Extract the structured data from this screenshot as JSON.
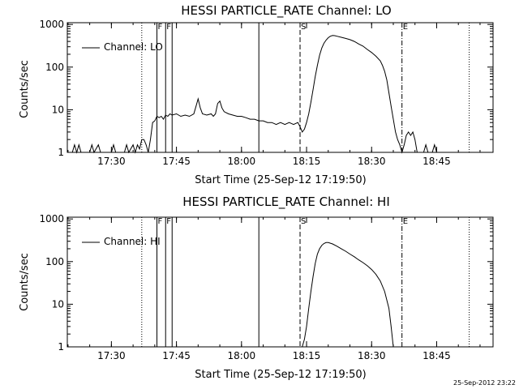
{
  "footer_stamp": "25-Sep-2012 23:22",
  "chart_data": [
    {
      "type": "line",
      "title": "HESSI PARTICLE_RATE Channel: LO",
      "xlabel": "Start Time (25-Sep-12 17:19:50)",
      "ylabel": "Counts/sec",
      "x_ticks": [
        "17:30",
        "17:45",
        "18:00",
        "18:15",
        "18:30",
        "18:45"
      ],
      "y_ticks": [
        "1",
        "10",
        "100",
        "1000"
      ],
      "yscale": "log",
      "xlim": [
        "17:19:50",
        "18:58:00"
      ],
      "ylim": [
        1,
        1100
      ],
      "legend": "top-left",
      "series": [
        {
          "name": "Channel: LO",
          "points": [
            [
              "17:21:00",
              1
            ],
            [
              "17:21:30",
              1.5
            ],
            [
              "17:22:00",
              1
            ],
            [
              "17:22:30",
              1.5
            ],
            [
              "17:23:00",
              1
            ],
            [
              "17:25:00",
              1
            ],
            [
              "17:25:30",
              1.5
            ],
            [
              "17:26:00",
              1
            ],
            [
              "17:27:00",
              1.5
            ],
            [
              "17:27:30",
              1
            ],
            [
              "17:30:00",
              1
            ],
            [
              "17:30:30",
              1.5
            ],
            [
              "17:31:00",
              1
            ],
            [
              "17:33:00",
              1
            ],
            [
              "17:33:30",
              1.5
            ],
            [
              "17:34:00",
              1
            ],
            [
              "17:35:00",
              1.5
            ],
            [
              "17:35:30",
              1
            ],
            [
              "17:36:00",
              1.5
            ],
            [
              "17:36:30",
              1.2
            ],
            [
              "17:37:00",
              2
            ],
            [
              "17:37:30",
              2
            ],
            [
              "17:38:00",
              1.5
            ],
            [
              "17:38:30",
              1
            ],
            [
              "17:39:00",
              2
            ],
            [
              "17:39:30",
              5
            ],
            [
              "17:40:00",
              5.5
            ],
            [
              "17:40:30",
              7
            ],
            [
              "17:41:00",
              6.5
            ],
            [
              "17:41:30",
              7
            ],
            [
              "17:42:00",
              6
            ],
            [
              "17:42:30",
              7.5
            ],
            [
              "17:43:00",
              7
            ],
            [
              "17:43:30",
              8
            ],
            [
              "17:44:00",
              7.5
            ],
            [
              "17:45:00",
              8
            ],
            [
              "17:46:00",
              7
            ],
            [
              "17:47:00",
              7.5
            ],
            [
              "17:48:00",
              7
            ],
            [
              "17:49:00",
              8
            ],
            [
              "17:49:30",
              12
            ],
            [
              "17:50:00",
              18
            ],
            [
              "17:50:30",
              11
            ],
            [
              "17:51:00",
              8
            ],
            [
              "17:52:00",
              7.5
            ],
            [
              "17:53:00",
              8
            ],
            [
              "17:53:30",
              7
            ],
            [
              "17:54:00",
              8
            ],
            [
              "17:54:30",
              14
            ],
            [
              "17:55:00",
              16
            ],
            [
              "17:55:30",
              11
            ],
            [
              "17:56:00",
              9
            ],
            [
              "17:57:00",
              8
            ],
            [
              "17:58:00",
              7.5
            ],
            [
              "17:59:00",
              7
            ],
            [
              "18:00:00",
              7
            ],
            [
              "18:01:00",
              6.5
            ],
            [
              "18:02:00",
              6
            ],
            [
              "18:03:00",
              6
            ],
            [
              "18:04:00",
              5.5
            ],
            [
              "18:05:00",
              5.5
            ],
            [
              "18:06:00",
              5
            ],
            [
              "18:07:00",
              5
            ],
            [
              "18:08:00",
              4.5
            ],
            [
              "18:09:00",
              5
            ],
            [
              "18:10:00",
              4.5
            ],
            [
              "18:11:00",
              5
            ],
            [
              "18:12:00",
              4.5
            ],
            [
              "18:13:00",
              5
            ],
            [
              "18:13:30",
              4
            ],
            [
              "18:14:00",
              3
            ],
            [
              "18:14:30",
              3.5
            ],
            [
              "18:15:00",
              5
            ],
            [
              "18:15:30",
              8
            ],
            [
              "18:16:00",
              15
            ],
            [
              "18:16:30",
              30
            ],
            [
              "18:17:00",
              60
            ],
            [
              "18:17:30",
              110
            ],
            [
              "18:18:00",
              190
            ],
            [
              "18:18:30",
              280
            ],
            [
              "18:19:00",
              360
            ],
            [
              "18:19:30",
              430
            ],
            [
              "18:20:00",
              490
            ],
            [
              "18:20:30",
              530
            ],
            [
              "18:21:00",
              550
            ],
            [
              "18:21:30",
              545
            ],
            [
              "18:22:00",
              530
            ],
            [
              "18:23:00",
              500
            ],
            [
              "18:24:00",
              470
            ],
            [
              "18:25:00",
              440
            ],
            [
              "18:26:00",
              400
            ],
            [
              "18:27:00",
              350
            ],
            [
              "18:28:00",
              310
            ],
            [
              "18:29:00",
              260
            ],
            [
              "18:30:00",
              220
            ],
            [
              "18:31:00",
              180
            ],
            [
              "18:32:00",
              140
            ],
            [
              "18:32:30",
              110
            ],
            [
              "18:33:00",
              80
            ],
            [
              "18:33:30",
              50
            ],
            [
              "18:34:00",
              25
            ],
            [
              "18:34:30",
              12
            ],
            [
              "18:35:00",
              6
            ],
            [
              "18:35:30",
              3
            ],
            [
              "18:36:00",
              2
            ],
            [
              "18:36:30",
              1.5
            ],
            [
              "18:37:00",
              1
            ],
            [
              "18:37:30",
              1.5
            ],
            [
              "18:38:00",
              2.5
            ],
            [
              "18:38:30",
              3
            ],
            [
              "18:39:00",
              2.5
            ],
            [
              "18:39:30",
              3
            ],
            [
              "18:40:00",
              2
            ],
            [
              "18:40:30",
              1
            ],
            [
              "18:42:00",
              1
            ],
            [
              "18:42:30",
              1.5
            ],
            [
              "18:43:00",
              1
            ],
            [
              "18:44:00",
              1
            ],
            [
              "18:44:30",
              1.5
            ],
            [
              "18:45:00",
              1
            ]
          ]
        }
      ],
      "markers": [
        {
          "time": "17:37:00",
          "style": "dotted",
          "label": ""
        },
        {
          "time": "17:40:30",
          "style": "solid",
          "label": "F"
        },
        {
          "time": "17:42:30",
          "style": "solid",
          "label": "F"
        },
        {
          "time": "17:44:00",
          "style": "solid",
          "label": ""
        },
        {
          "time": "18:04:00",
          "style": "solid",
          "label": ""
        },
        {
          "time": "18:13:30",
          "style": "dashed",
          "label": "S"
        },
        {
          "time": "18:37:00",
          "style": "dashdot",
          "label": "E"
        },
        {
          "time": "18:52:30",
          "style": "dotted",
          "label": ""
        }
      ]
    },
    {
      "type": "line",
      "title": "HESSI PARTICLE_RATE Channel: HI",
      "xlabel": "Start Time (25-Sep-12 17:19:50)",
      "ylabel": "Counts/sec",
      "x_ticks": [
        "17:30",
        "17:45",
        "18:00",
        "18:15",
        "18:30",
        "18:45"
      ],
      "y_ticks": [
        "1",
        "10",
        "100",
        "1000"
      ],
      "yscale": "log",
      "xlim": [
        "17:19:50",
        "18:58:00"
      ],
      "ylim": [
        1,
        1100
      ],
      "legend": "top-left",
      "series": [
        {
          "name": "Channel: HI",
          "points": [
            [
              "18:14:00",
              1
            ],
            [
              "18:14:30",
              1.5
            ],
            [
              "18:15:00",
              3
            ],
            [
              "18:15:30",
              8
            ],
            [
              "18:16:00",
              20
            ],
            [
              "18:16:30",
              45
            ],
            [
              "18:17:00",
              90
            ],
            [
              "18:17:30",
              150
            ],
            [
              "18:18:00",
              200
            ],
            [
              "18:18:30",
              240
            ],
            [
              "18:19:00",
              265
            ],
            [
              "18:19:30",
              280
            ],
            [
              "18:20:00",
              280
            ],
            [
              "18:20:30",
              270
            ],
            [
              "18:21:00",
              260
            ],
            [
              "18:22:00",
              230
            ],
            [
              "18:23:00",
              200
            ],
            [
              "18:24:00",
              175
            ],
            [
              "18:25:00",
              150
            ],
            [
              "18:26:00",
              130
            ],
            [
              "18:27:00",
              110
            ],
            [
              "18:28:00",
              95
            ],
            [
              "18:29:00",
              80
            ],
            [
              "18:30:00",
              65
            ],
            [
              "18:31:00",
              50
            ],
            [
              "18:32:00",
              35
            ],
            [
              "18:33:00",
              20
            ],
            [
              "18:34:00",
              8
            ],
            [
              "18:34:30",
              3
            ],
            [
              "18:35:00",
              1
            ]
          ]
        }
      ],
      "markers": [
        {
          "time": "17:37:00",
          "style": "dotted",
          "label": ""
        },
        {
          "time": "17:40:30",
          "style": "solid",
          "label": "F"
        },
        {
          "time": "17:42:30",
          "style": "solid",
          "label": "F"
        },
        {
          "time": "17:44:00",
          "style": "solid",
          "label": ""
        },
        {
          "time": "18:04:00",
          "style": "solid",
          "label": ""
        },
        {
          "time": "18:13:30",
          "style": "dashed",
          "label": "S"
        },
        {
          "time": "18:37:00",
          "style": "dashdot",
          "label": "E"
        },
        {
          "time": "18:52:30",
          "style": "dotted",
          "label": ""
        }
      ]
    }
  ]
}
